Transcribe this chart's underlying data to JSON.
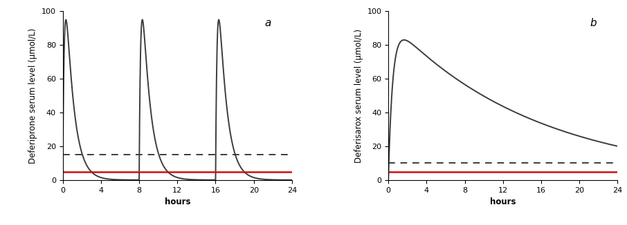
{
  "panel_a": {
    "label": "a",
    "ylabel": "Deferiprone serum level (μmol/L)",
    "xlabel": "hours",
    "xlim": [
      0,
      24
    ],
    "ylim": [
      0,
      100
    ],
    "xticks": [
      0,
      4,
      8,
      12,
      16,
      20,
      24
    ],
    "yticks": [
      0,
      20,
      40,
      60,
      80,
      100
    ],
    "dashed_line_y": 15,
    "red_line_y": 5,
    "dose_times": [
      0,
      8,
      16
    ],
    "peak_value": 95,
    "ka": 6.0,
    "ke": 1.2,
    "line_color": "#3c3c3c",
    "dashed_color": "#3c3c3c",
    "red_color": "#cc1111"
  },
  "panel_b": {
    "label": "b",
    "ylabel": "Deferisarox serum level (μmol/L)",
    "xlabel": "hours",
    "xlim": [
      0,
      24
    ],
    "ylim": [
      0,
      100
    ],
    "xticks": [
      0,
      4,
      8,
      12,
      16,
      20,
      24
    ],
    "yticks": [
      0,
      20,
      40,
      60,
      80,
      100
    ],
    "dashed_line_y": 10,
    "red_line_y": 5,
    "peak_value": 83,
    "ka": 2.2,
    "ke": 0.065,
    "line_color": "#3c3c3c",
    "dashed_color": "#3c3c3c",
    "red_color": "#cc1111"
  },
  "fig_background": "#ffffff",
  "axes_background": "#ffffff",
  "line_width": 1.4,
  "dashed_linewidth": 1.4,
  "red_linewidth": 1.8,
  "label_fontsize": 8.5,
  "tick_fontsize": 8,
  "panel_label_fontsize": 11
}
